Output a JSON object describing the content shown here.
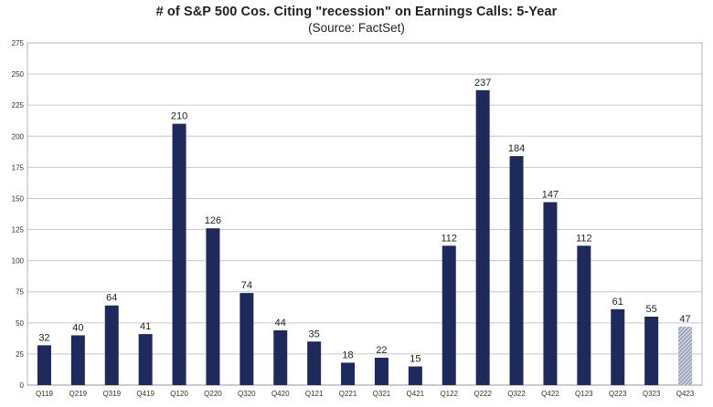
{
  "chart_data": {
    "type": "bar",
    "title": "# of S&P 500 Cos. Citing \"recession\" on Earnings Calls: 5-Year",
    "subtitle": "(Source: FactSet)",
    "xlabel": "",
    "ylabel": "",
    "ylim": [
      0,
      275
    ],
    "yticks": [
      0,
      25,
      50,
      75,
      100,
      125,
      150,
      175,
      200,
      225,
      250,
      275
    ],
    "grid": true,
    "categories": [
      "Q119",
      "Q219",
      "Q319",
      "Q419",
      "Q120",
      "Q220",
      "Q320",
      "Q420",
      "Q121",
      "Q221",
      "Q321",
      "Q421",
      "Q122",
      "Q222",
      "Q322",
      "Q422",
      "Q123",
      "Q223",
      "Q323",
      "Q423"
    ],
    "values": [
      32,
      40,
      64,
      41,
      210,
      126,
      74,
      44,
      35,
      18,
      22,
      15,
      112,
      237,
      184,
      147,
      112,
      61,
      55,
      47
    ],
    "bar_color": "#1f2a5c",
    "highlight_color": "#9aa3b8",
    "highlight_index": 19
  }
}
